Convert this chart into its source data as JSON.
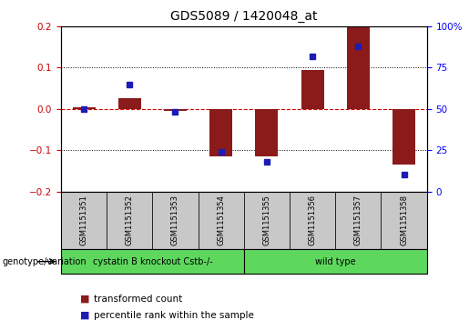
{
  "title": "GDS5089 / 1420048_at",
  "samples": [
    "GSM1151351",
    "GSM1151352",
    "GSM1151353",
    "GSM1151354",
    "GSM1151355",
    "GSM1151356",
    "GSM1151357",
    "GSM1151358"
  ],
  "transformed_count": [
    0.005,
    0.025,
    -0.005,
    -0.115,
    -0.115,
    0.095,
    0.2,
    -0.135
  ],
  "percentile_rank": [
    50,
    65,
    48,
    24,
    18,
    82,
    88,
    10
  ],
  "ylim_left": [
    -0.2,
    0.2
  ],
  "ylim_right": [
    0,
    100
  ],
  "yticks_left": [
    -0.2,
    -0.1,
    0.0,
    0.1,
    0.2
  ],
  "yticks_right": [
    0,
    25,
    50,
    75,
    100
  ],
  "ytick_labels_right": [
    "0",
    "25",
    "50",
    "75",
    "100%"
  ],
  "bar_color": "#8B1A1A",
  "dot_color": "#1C1CB4",
  "hline_color": "#CC0000",
  "grid_color": "#000000",
  "bar_width": 0.5,
  "group1_label": "cystatin B knockout Cstb-/-",
  "group2_label": "wild type",
  "group1_samples": [
    0,
    1,
    2,
    3
  ],
  "group2_samples": [
    4,
    5,
    6,
    7
  ],
  "green_color": "#5DD85D",
  "gray_color": "#C8C8C8",
  "genotype_label": "genotype/variation",
  "legend_items": [
    "transformed count",
    "percentile rank within the sample"
  ]
}
